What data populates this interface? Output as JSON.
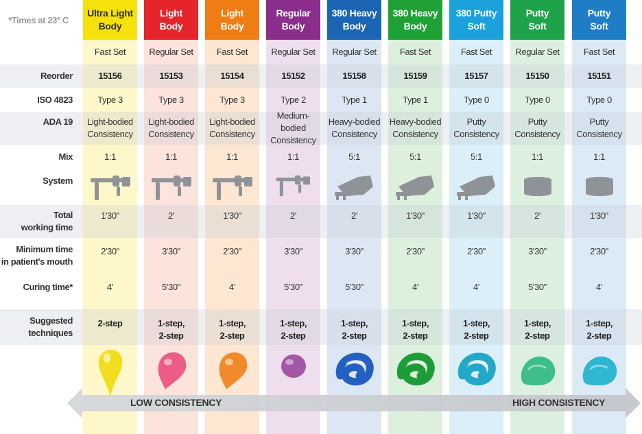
{
  "corner_note": "*Times at 23° C",
  "row_labels": {
    "reorder": "Reorder",
    "iso": "ISO 4823",
    "ada": "ADA 19",
    "mix": "Mix",
    "system": "System",
    "total": [
      "Total",
      "working time"
    ],
    "minimum": [
      "Minimum time",
      "in patient's mouth"
    ],
    "curing": "Curing time*",
    "suggested": [
      "Suggested",
      "techniques"
    ]
  },
  "columns": [
    {
      "name": [
        "Ultra Light",
        "Body"
      ],
      "color": "#F5E20C",
      "text_color": "#333333",
      "tint": "#FEF7C9",
      "set": "Fast Set",
      "reorder": "15156",
      "iso": "Type 3",
      "ada": [
        "Light-bodied",
        "Consistency"
      ],
      "mix": "1:1",
      "system": "gun",
      "total": "1'30\"",
      "minimum": "2'30\"",
      "curing": "4'",
      "technique": [
        "2-step"
      ],
      "material": "drop",
      "material_color": "#F2DE1E"
    },
    {
      "name": [
        "Light",
        "Body"
      ],
      "color": "#E5242B",
      "text_color": "#FFFFFF",
      "tint": "#FCE3DC",
      "set": "Regular Set",
      "reorder": "15153",
      "iso": "Type 3",
      "ada": [
        "Light-bodied",
        "Consistency"
      ],
      "mix": "1:1",
      "system": "gun",
      "total": "2'",
      "minimum": "3'30\"",
      "curing": "5'30\"",
      "technique": [
        "1-step,",
        "2-step"
      ],
      "material": "drop",
      "material_color": "#EC5C86"
    },
    {
      "name": [
        "Light",
        "Body"
      ],
      "color": "#EE7D14",
      "text_color": "#FFFFFF",
      "tint": "#FDE7D3",
      "set": "Fast Set",
      "reorder": "15154",
      "iso": "Type 3",
      "ada": [
        "Light-bodied",
        "Consistency"
      ],
      "mix": "1:1",
      "system": "gun",
      "total": "1'30\"",
      "minimum": "2'30\"",
      "curing": "4'",
      "technique": [
        "1-step,",
        "2-step"
      ],
      "material": "drop",
      "material_color": "#F08A2A"
    },
    {
      "name": [
        "Regular",
        "Body"
      ],
      "color": "#8B2D8A",
      "text_color": "#FFFFFF",
      "tint": "#EFDFEE",
      "set": "Regular Set",
      "reorder": "15152",
      "iso": "Type 2",
      "ada": [
        "Medium-bodied",
        "Consistency"
      ],
      "mix": "1:1",
      "system": "gun-small",
      "total": "2'",
      "minimum": "3'30\"",
      "curing": "5'30\"",
      "technique": [
        "1-step,",
        "2-step"
      ],
      "material": "blob",
      "material_color": "#A457A6"
    },
    {
      "name": [
        "380 Heavy",
        "Body"
      ],
      "color": "#1C65B4",
      "text_color": "#FFFFFF",
      "tint": "#DDE7F4",
      "set": "Regular Set",
      "reorder": "15158",
      "iso": "Type 1",
      "ada": [
        "Heavy-bodied",
        "Consistency"
      ],
      "mix": "5:1",
      "system": "cartridge",
      "total": "2'",
      "minimum": "3'30\"",
      "curing": "5'30\"",
      "technique": [
        "1-step,",
        "2-step"
      ],
      "material": "swirl",
      "material_color": "#2460C0"
    },
    {
      "name": [
        "380 Heavy",
        "Body"
      ],
      "color": "#20A135",
      "text_color": "#FFFFFF",
      "tint": "#DDF0DD",
      "set": "Fast Set",
      "reorder": "15159",
      "iso": "Type 1",
      "ada": [
        "Heavy-bodied",
        "Consistency"
      ],
      "mix": "5:1",
      "system": "cartridge",
      "total": "1'30\"",
      "minimum": "2'30\"",
      "curing": "4'",
      "technique": [
        "1-step,",
        "2-step"
      ],
      "material": "swirl",
      "material_color": "#1E9C3A"
    },
    {
      "name": [
        "380 Putty",
        "Soft"
      ],
      "color": "#1BA1DB",
      "text_color": "#FFFFFF",
      "tint": "#DBEFF8",
      "set": "Fast Set",
      "reorder": "15157",
      "iso": "Type 0",
      "ada": [
        "Putty",
        "Consistency"
      ],
      "mix": "5:1",
      "system": "cartridge",
      "total": "1'30\"",
      "minimum": "2'30\"",
      "curing": "4'",
      "technique": [
        "1-step,",
        "2-step"
      ],
      "material": "swirl",
      "material_color": "#23A8C8"
    },
    {
      "name": [
        "Putty",
        "Soft"
      ],
      "color": "#1EA34A",
      "text_color": "#FFFFFF",
      "tint": "#DDF0E0",
      "set": "Regular Set",
      "reorder": "15150",
      "iso": "Type 0",
      "ada": [
        "Putty",
        "Consistency"
      ],
      "mix": "1:1",
      "system": "jar",
      "total": "2'",
      "minimum": "3'30\"",
      "curing": "5'30\"",
      "technique": [
        "1-step,",
        "2-step"
      ],
      "material": "putty",
      "material_color": "#3DBE8A"
    },
    {
      "name": [
        "Putty",
        "Soft"
      ],
      "color": "#1F7DC5",
      "text_color": "#FFFFFF",
      "tint": "#DCEAF6",
      "set": "Fast Set",
      "reorder": "15151",
      "iso": "Type 0",
      "ada": [
        "Putty",
        "Consistency"
      ],
      "mix": "1:1",
      "system": "jar",
      "total": "1'30\"",
      "minimum": "2'30\"",
      "curing": "4'",
      "technique": [
        "1-step,",
        "2-step"
      ],
      "material": "putty",
      "material_color": "#2FB6D0"
    }
  ],
  "arrow": {
    "low": "LOW CONSISTENCY",
    "high": "HIGH CONSISTENCY"
  }
}
